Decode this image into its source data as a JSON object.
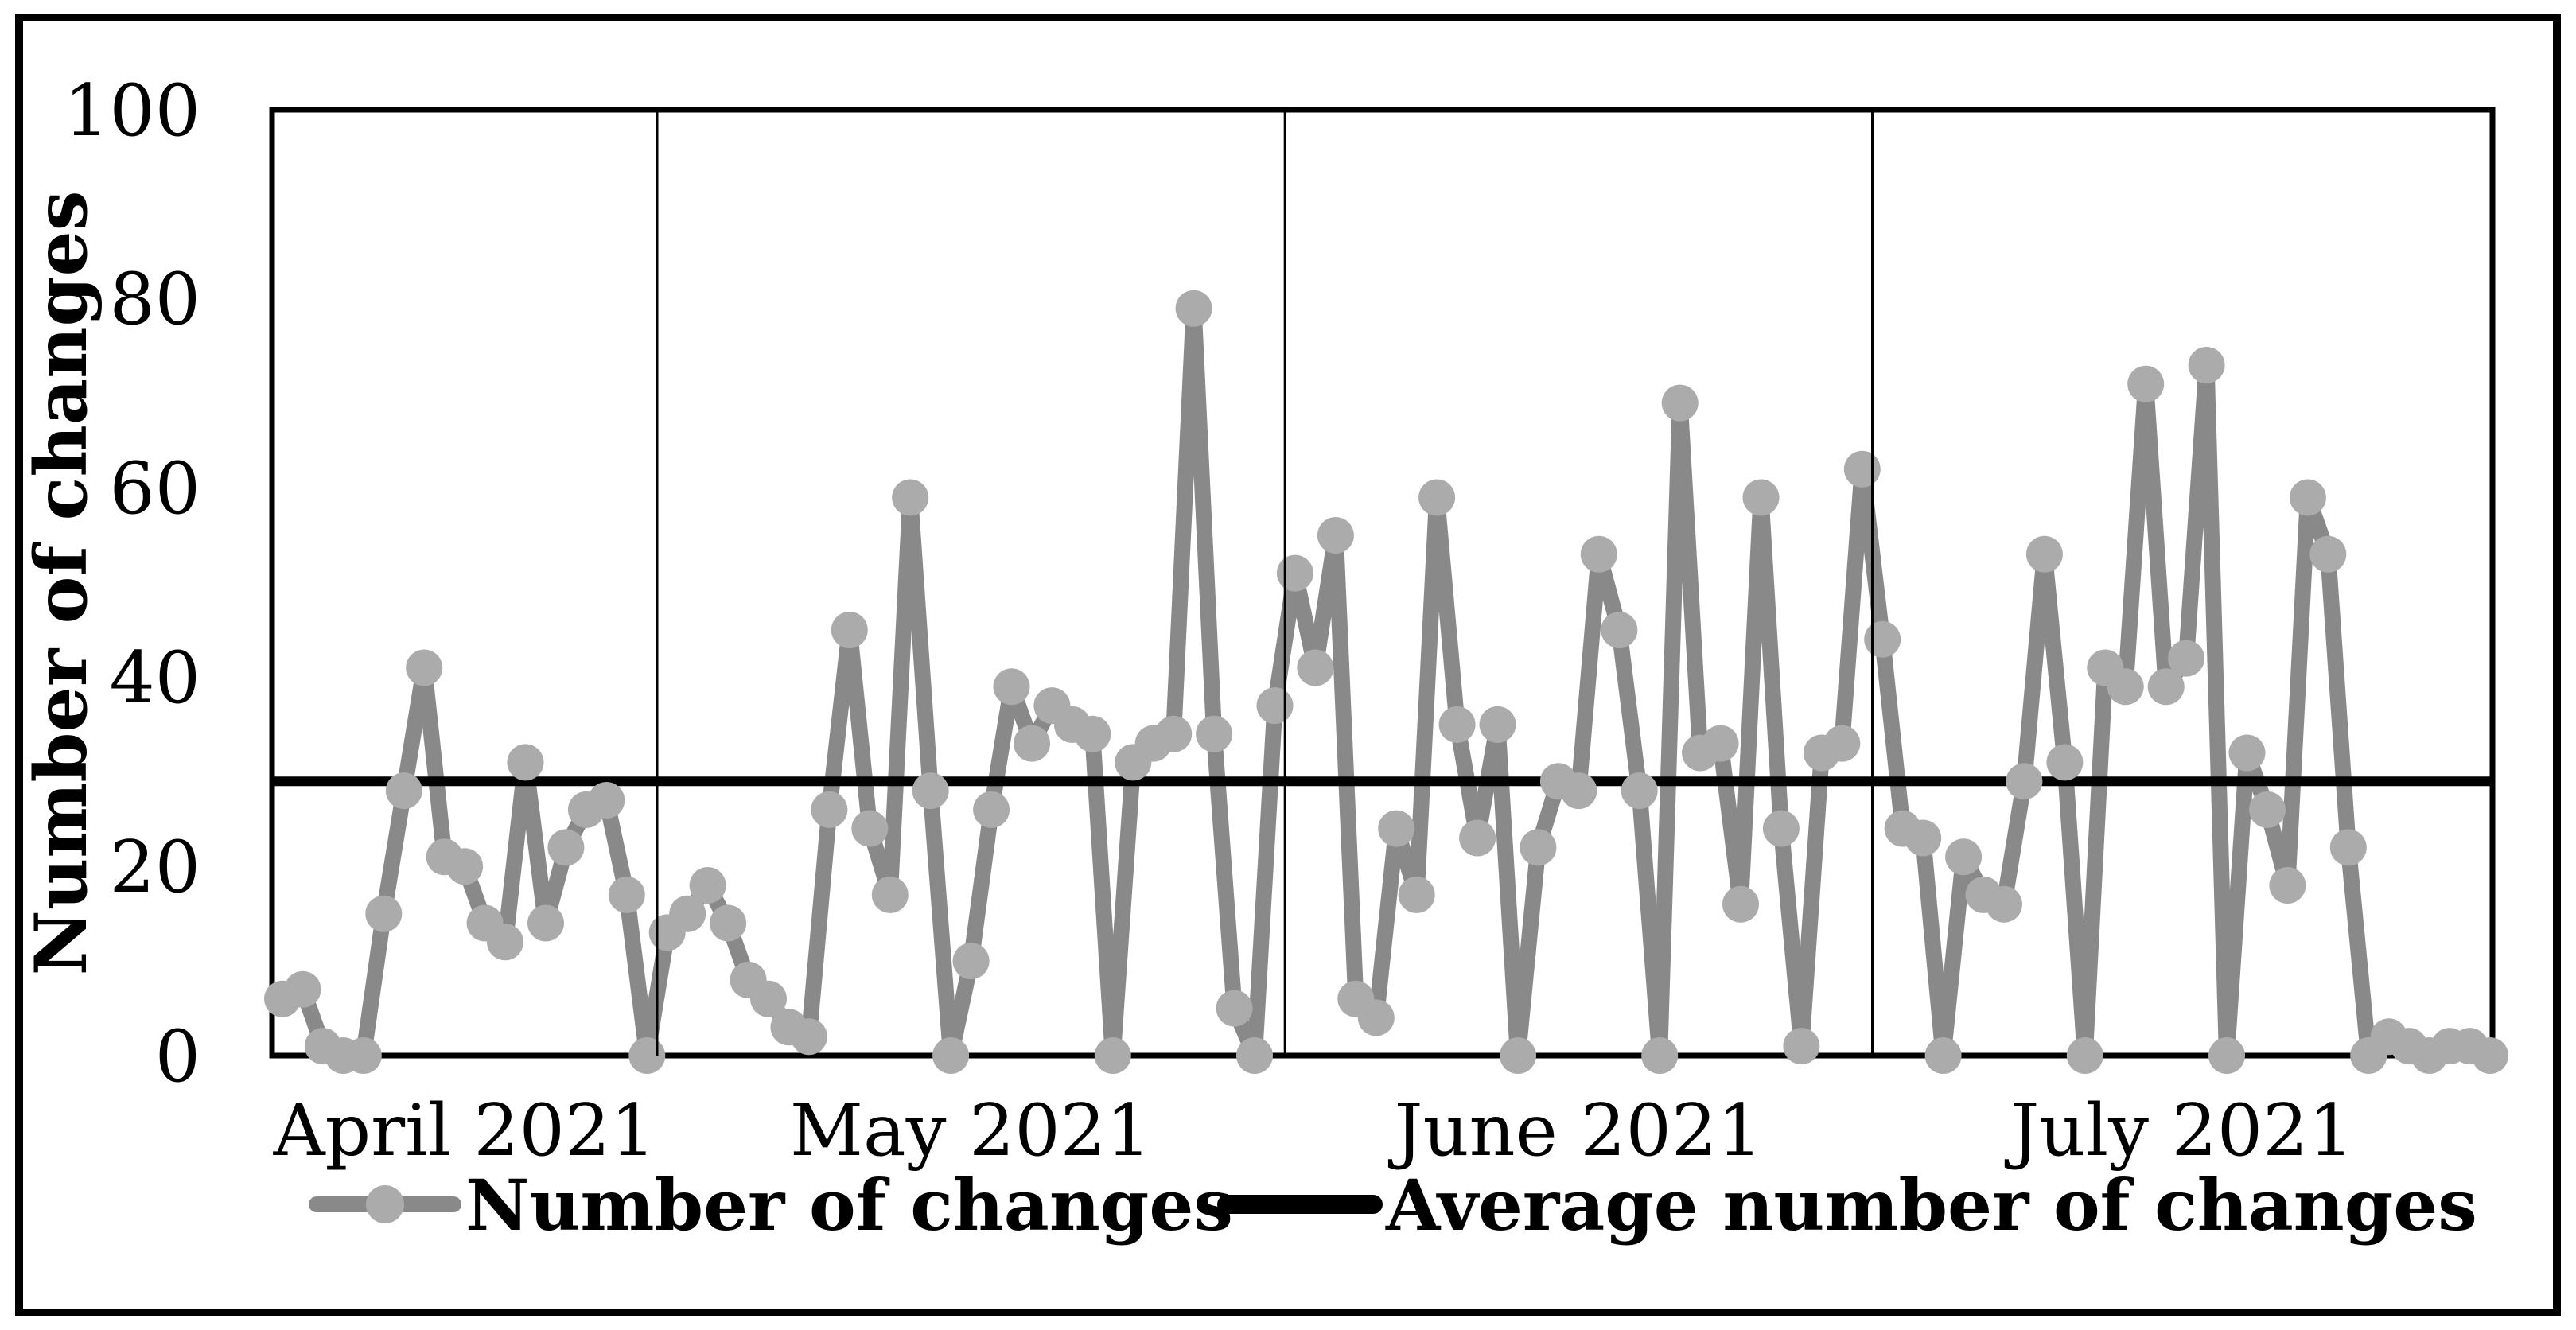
{
  "figure": {
    "background": "#ffffff",
    "border_color": "#000000"
  },
  "chart_data": {
    "type": "line",
    "title": "",
    "ylabel": "Number of changes",
    "ylim": [
      0,
      100
    ],
    "grid": "vertical-month-separators",
    "legend_position": "bottom",
    "y_tick_labels": [
      "0",
      "20",
      "40",
      "60",
      "80",
      "100"
    ],
    "y_ticks": [
      0,
      20,
      40,
      60,
      80,
      100
    ],
    "x_tick_labels": [
      "April 2021",
      "May 2021",
      "June 2021",
      "July 2021"
    ],
    "series": [
      {
        "name": "Number of changes",
        "type": "line-with-markers",
        "color": "#898989",
        "marker_color": "#ababab",
        "values_by_month": [
          {
            "month": "April 2021",
            "values": [
              6,
              7,
              1,
              0,
              0,
              15,
              28,
              41,
              21,
              20,
              14,
              12,
              31,
              14,
              22,
              26,
              27,
              17,
              0
            ]
          },
          {
            "month": "May 2021",
            "values": [
              13,
              15,
              18,
              14,
              8,
              6,
              3,
              2,
              26,
              45,
              24,
              17,
              59,
              28,
              0,
              10,
              26,
              39,
              33,
              37,
              35,
              34,
              0,
              31,
              33,
              34,
              79,
              34,
              5,
              0,
              37
            ]
          },
          {
            "month": "June 2021",
            "values": [
              51,
              41,
              55,
              6,
              4,
              24,
              17,
              59,
              35,
              23,
              35,
              0,
              22,
              29,
              28,
              53,
              45,
              28,
              0,
              69,
              32,
              33,
              16,
              59,
              24,
              1,
              32,
              33,
              62
            ]
          },
          {
            "month": "July 2021",
            "values": [
              44,
              24,
              23,
              0,
              21,
              17,
              16,
              29,
              53,
              31,
              0,
              41,
              39,
              71,
              39,
              42,
              73,
              0,
              32,
              26,
              18,
              59,
              53,
              22,
              0,
              2,
              1,
              0,
              1,
              1,
              0
            ]
          }
        ]
      },
      {
        "name": "Average number of changes",
        "type": "horizontal-line",
        "color": "#000000",
        "value": 29
      }
    ]
  }
}
